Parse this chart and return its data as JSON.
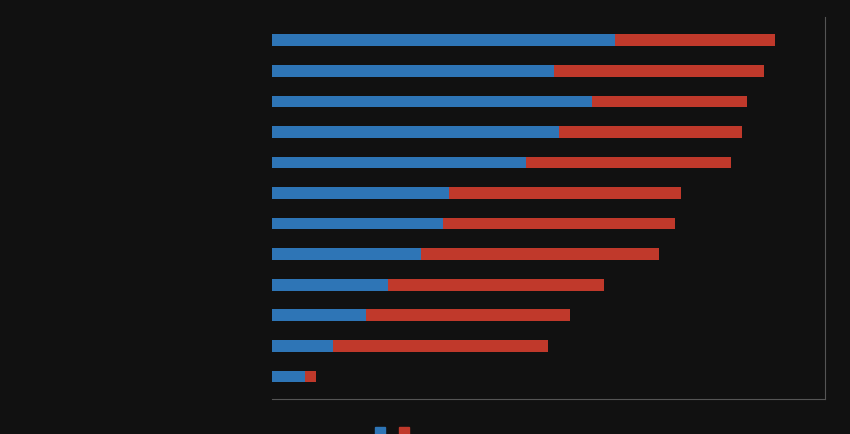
{
  "blue_values": [
    62,
    51,
    58,
    52,
    46,
    32,
    31,
    27,
    21,
    17,
    11,
    6
  ],
  "red_values": [
    29,
    38,
    28,
    33,
    37,
    42,
    42,
    43,
    39,
    37,
    39,
    2
  ],
  "blue_color": "#2E75B6",
  "red_color": "#C0392B",
  "background_color": "#111111",
  "plot_bg_color": "#111111",
  "bar_height": 0.38,
  "xlim": [
    0,
    100
  ],
  "figsize": [
    8.5,
    4.34
  ]
}
